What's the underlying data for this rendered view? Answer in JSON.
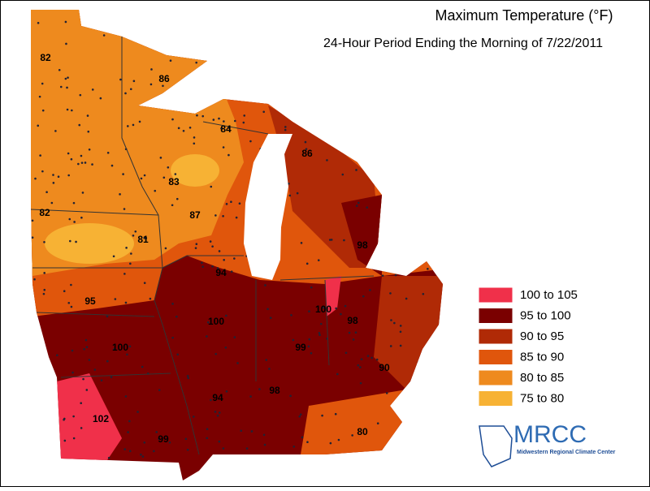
{
  "header": {
    "title": "Maximum Temperature (°F)",
    "subtitle": "24-Hour Period Ending the Morning of 7/22/2011"
  },
  "legend": {
    "items": [
      {
        "label": "100 to 105",
        "color": "#f0304a"
      },
      {
        "label": "95 to 100",
        "color": "#7a0000"
      },
      {
        "label": "90 to 95",
        "color": "#b02a06"
      },
      {
        "label": "85 to 90",
        "color": "#e0560c"
      },
      {
        "label": "80 to 85",
        "color": "#ee8a1e"
      },
      {
        "label": "75 to 80",
        "color": "#f7b234"
      }
    ]
  },
  "map": {
    "labels": [
      "82",
      "86",
      "84",
      "86",
      "83",
      "87",
      "82",
      "81",
      "98",
      "94",
      "95",
      "100",
      "98",
      "100",
      "100",
      "99",
      "90",
      "94",
      "98",
      "102",
      "99",
      "80"
    ]
  },
  "logo": {
    "name": "MRCC",
    "subtitle": "Midwestern Regional Climate Center"
  }
}
